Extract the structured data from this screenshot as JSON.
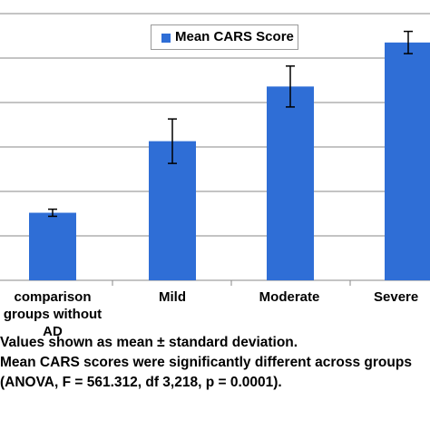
{
  "chart_data": {
    "type": "bar",
    "categories": [
      "comparison groups without AD",
      "Mild",
      "Moderate",
      "Severe"
    ],
    "category_labels": [
      [
        "comparison",
        "groups without",
        "AD"
      ],
      [
        "Mild"
      ],
      [
        "Moderate"
      ],
      [
        "Severe"
      ]
    ],
    "series": [
      {
        "name": "Mean CARS Score",
        "values": [
          15.2,
          31.3,
          43.6,
          53.5
        ],
        "error": [
          0.8,
          5.0,
          4.6,
          2.5
        ]
      }
    ],
    "ylim": [
      0,
      60
    ],
    "yticks": [
      0,
      10,
      20,
      30,
      40,
      50,
      60
    ],
    "grid": true,
    "legend": "top-center",
    "bar_color": "#2f6ed6"
  },
  "notes": [
    "Values  shown  as  mean  ±  standard  deviation.",
    "Mean CARS  scores  were significantly  different across groups",
    "(ANOVA, F = 561.312, df 3,218, p = 0.0001)."
  ]
}
